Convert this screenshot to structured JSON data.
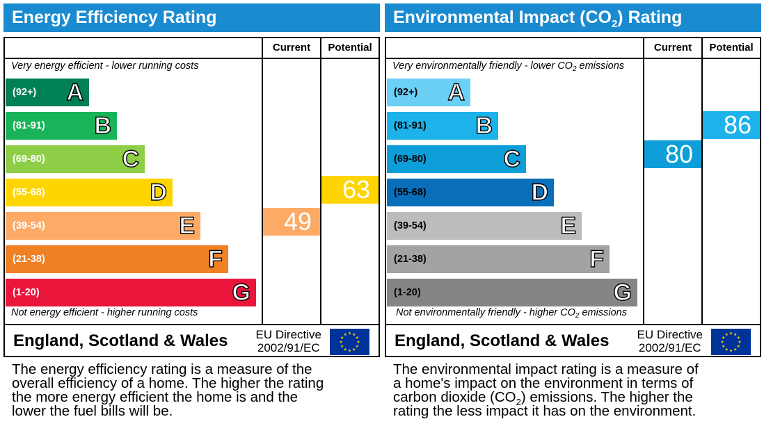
{
  "chart_data": [
    {
      "type": "bar",
      "title": "Energy Efficiency Rating",
      "columns": [
        "Current",
        "Potential"
      ],
      "top_note": "Very energy efficient - lower running costs",
      "bottom_note": "Not energy efficient - higher running costs",
      "categories": [
        "A",
        "B",
        "C",
        "D",
        "E",
        "F",
        "G"
      ],
      "ranges": [
        "(92+)",
        "(81-91)",
        "(69-80)",
        "(55-68)",
        "(39-54)",
        "(21-38)",
        "(1-20)"
      ],
      "colors": [
        "#008054",
        "#19b459",
        "#8dce46",
        "#ffd500",
        "#fcaa65",
        "#ef8023",
        "#e9153b"
      ],
      "current": {
        "value": 49,
        "band": "E",
        "color": "#fcaa65"
      },
      "potential": {
        "value": 63,
        "band": "D",
        "color": "#ffd500"
      },
      "region": "England, Scotland & Wales",
      "directive": [
        "EU Directive",
        "2002/91/EC"
      ],
      "caption": [
        "The energy efficiency rating is a measure of the",
        "overall efficiency of a home. The higher the rating",
        "the more energy efficient the home is and the",
        "lower the fuel bills will be."
      ]
    },
    {
      "type": "bar",
      "title": "Environmental Impact (CO2) Rating",
      "columns": [
        "Current",
        "Potential"
      ],
      "top_note": "Very environmentally friendly - lower CO2 emissions",
      "bottom_note": "Not environmentally friendly - higher CO2 emissions",
      "categories": [
        "A",
        "B",
        "C",
        "D",
        "E",
        "F",
        "G"
      ],
      "ranges": [
        "(92+)",
        "(81-91)",
        "(69-80)",
        "(55-68)",
        "(39-54)",
        "(21-38)",
        "(1-20)"
      ],
      "colors": [
        "#6ccff6",
        "#1eb2ea",
        "#0d9ed9",
        "#0a6fba",
        "#bcbcbc",
        "#a3a3a3",
        "#858585"
      ],
      "current": {
        "value": 80,
        "band": "C",
        "color": "#0d9ed9"
      },
      "potential": {
        "value": 86,
        "band": "B",
        "color": "#1eb2ea"
      },
      "region": "England, Scotland & Wales",
      "directive": [
        "EU Directive",
        "2002/91/EC"
      ],
      "caption": [
        "The environmental impact rating is a measure of",
        "a home's impact on the environment in terms of",
        "carbon dioxide (CO2) emissions. The higher the",
        "rating the less impact it has on the environment."
      ]
    }
  ],
  "eu_flag_colors": {
    "field": "#003399",
    "stars": "#ffcc00"
  }
}
